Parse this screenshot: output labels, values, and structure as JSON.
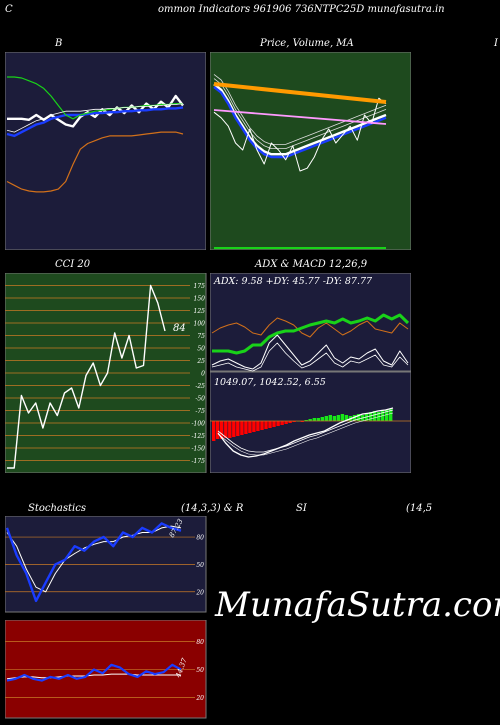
{
  "header": {
    "left_char": "C",
    "title": "ommon  Indicators 961906  736NTPC25D munafasutra.in",
    "right_char": "I"
  },
  "panels": {
    "bb_title": "B",
    "price_title": "Price,  Volume,  MA",
    "price_title_overlay": "Volume",
    "cci_title": "CCI 20",
    "cci_value": "84",
    "adx_title": "ADX  & MACD 12,26,9",
    "adx_values": "ADX: 9.58  +DY: 45.77 -DY: 87.77",
    "macd_values": "1049.07,   1042.52,   6.55",
    "stoch_title_left": "Stochastics",
    "stoch_title_mid": "(14,3,3) & R",
    "stoch_title_si": "SI",
    "stoch_title_right": "(14,5",
    "stoch_value": "87.23",
    "rsi_value": "44.37"
  },
  "watermark": "MunafaSutra.com",
  "colors": {
    "navy_bg": "#1c1c3a",
    "green_bg": "#1e4a1e",
    "red_bg": "#8a0000",
    "white": "#ffffff",
    "blue": "#1a3cff",
    "green": "#19d219",
    "orange": "#d2701a",
    "grid_orange": "#c87a26",
    "macd_green": "#19e619",
    "macd_red": "#ff0000"
  },
  "chart_data": [
    {
      "type": "line",
      "title": "B",
      "series": [
        {
          "values": [
            56,
            56,
            56,
            55,
            60,
            55,
            60,
            55,
            50,
            48,
            58,
            63,
            58,
            66,
            60,
            68,
            62,
            70,
            63,
            72,
            66,
            74,
            68,
            80,
            70
          ]
        },
        {
          "values": [
            40,
            38,
            42,
            46,
            50,
            52,
            56,
            58,
            60,
            60,
            60,
            61,
            62,
            62,
            63,
            63,
            64,
            64,
            65,
            65,
            66,
            66,
            67,
            67,
            68
          ]
        },
        {
          "values": [
            100,
            100,
            99,
            96,
            93,
            88,
            80,
            70,
            60,
            56,
            60,
            62,
            64,
            65,
            66,
            67,
            68,
            68,
            69,
            70,
            70,
            71,
            71,
            72,
            72
          ]
        },
        {
          "values": [
            -10,
            -14,
            -18,
            -20,
            -21,
            -21,
            -20,
            -18,
            -10,
            8,
            24,
            30,
            33,
            36,
            38,
            38,
            38,
            38,
            39,
            40,
            41,
            42,
            42,
            42,
            40
          ]
        }
      ]
    },
    {
      "type": "line",
      "title": "CCI 20",
      "yticks": [
        175,
        150,
        125,
        100,
        75,
        50,
        25,
        0,
        -25,
        -50,
        -75,
        -100,
        -125,
        -150,
        -175
      ],
      "ylim": [
        -190,
        190
      ],
      "series": [
        {
          "values": [
            -190,
            -190,
            -45,
            -80,
            -60,
            -110,
            -60,
            -85,
            -40,
            -30,
            -70,
            -5,
            20,
            -25,
            0,
            80,
            30,
            75,
            10,
            15,
            175,
            140,
            84
          ]
        }
      ]
    },
    {
      "type": "bar",
      "title": "MACD 12,26,9",
      "values": [
        -20,
        -18,
        -18,
        -17,
        -17,
        -16,
        -15,
        -14,
        -13,
        -12,
        -11,
        -10,
        -9,
        -8,
        -7,
        -6,
        -5,
        -4,
        -3,
        -2,
        -1,
        0,
        -1,
        1,
        2,
        3,
        3,
        4,
        5,
        6,
        5,
        6,
        7,
        6,
        5,
        6,
        7,
        6,
        8,
        9,
        10,
        9,
        10,
        11,
        12
      ]
    },
    {
      "type": "line",
      "title": "Stochastics (14,3,3)",
      "yticks": [
        80,
        50,
        20
      ],
      "ylim": [
        0,
        100
      ],
      "series": [
        {
          "values": [
            90,
            60,
            40,
            10,
            30,
            50,
            55,
            70,
            65,
            75,
            80,
            70,
            85,
            80,
            90,
            85,
            95,
            90,
            87
          ]
        },
        {
          "values": [
            85,
            70,
            45,
            25,
            20,
            40,
            55,
            62,
            68,
            72,
            75,
            75,
            80,
            82,
            85,
            85,
            90,
            92,
            90
          ]
        }
      ]
    },
    {
      "type": "line",
      "title": "RSI (14",
      "yticks": [
        80,
        50,
        20
      ],
      "ylim": [
        0,
        100
      ],
      "series": [
        {
          "values": [
            38,
            40,
            44,
            40,
            38,
            42,
            40,
            44,
            40,
            42,
            50,
            46,
            55,
            52,
            45,
            42,
            48,
            45,
            47,
            55,
            50
          ]
        },
        {
          "values": [
            40,
            41,
            42,
            42,
            41,
            41,
            42,
            43,
            43,
            43,
            44,
            44,
            45,
            45,
            45,
            44,
            44,
            44,
            44,
            44,
            44
          ]
        }
      ]
    }
  ]
}
